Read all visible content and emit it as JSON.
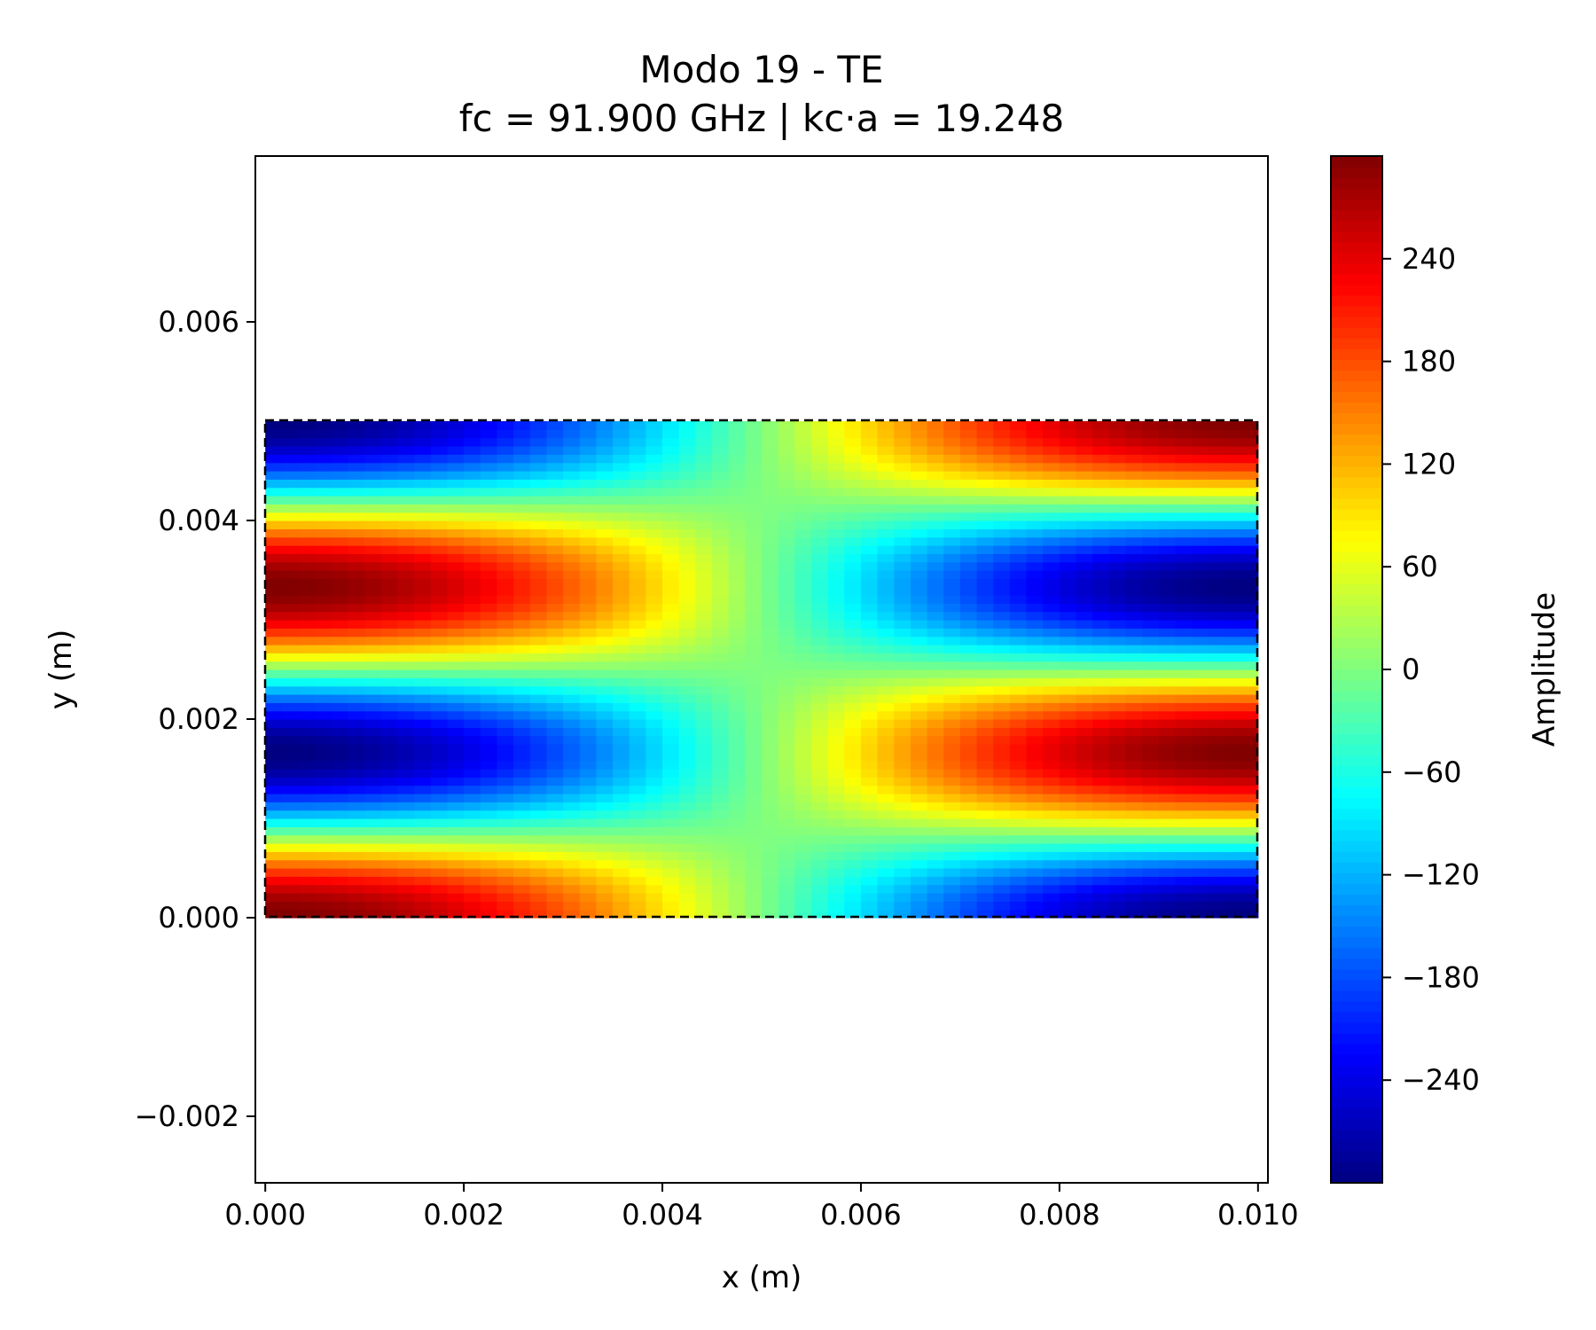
{
  "chart_data": {
    "type": "heatmap",
    "title_lines": [
      "Modo 19 - TE",
      "fc = 91.900 GHz | kc·a = 19.248"
    ],
    "xlabel": "x (m)",
    "ylabel": "y (m)",
    "xlim": [
      -0.0001,
      0.0101
    ],
    "ylim": [
      -0.00267,
      0.00767
    ],
    "xticks": [
      0.0,
      0.002,
      0.004,
      0.006,
      0.008,
      0.01
    ],
    "xtick_labels": [
      "0.000",
      "0.002",
      "0.004",
      "0.006",
      "0.008",
      "0.010"
    ],
    "yticks": [
      -0.002,
      0.0,
      0.002,
      0.004,
      0.006
    ],
    "ytick_labels": [
      "−0.002",
      "0.000",
      "0.002",
      "0.004",
      "0.006"
    ],
    "field": {
      "x_range": [
        0.0,
        0.01
      ],
      "y_range": [
        0.0,
        0.005
      ],
      "nx": 60,
      "ny": 60,
      "m": 1,
      "n": 3,
      "amplitude": 300,
      "formula": "amplitude * cos(m*pi*x/a) * cos(n*pi*y/b)"
    },
    "boundary": {
      "x": [
        0.0,
        0.01
      ],
      "y": [
        0.0,
        0.005
      ],
      "style": "dashed",
      "color": "#000000"
    },
    "colormap": "jet",
    "colorbar": {
      "label": "Amplitude",
      "range": [
        -300,
        300
      ],
      "ticks": [
        -240,
        -180,
        -120,
        -60,
        0,
        60,
        120,
        180,
        240
      ],
      "tick_labels": [
        "−240",
        "−180",
        "−120",
        "−60",
        "0",
        "60",
        "120",
        "180",
        "240"
      ]
    }
  }
}
